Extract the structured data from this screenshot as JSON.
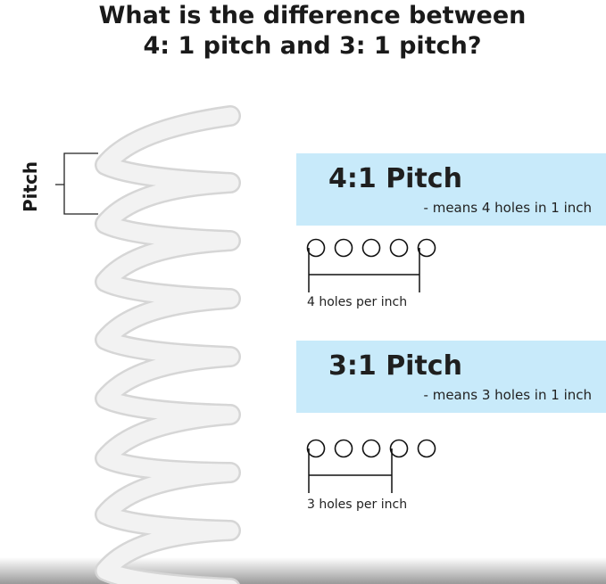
{
  "title": {
    "line1": "What is the difference between",
    "line2": "4: 1 pitch and 3: 1 pitch?"
  },
  "spring": {
    "label": "Pitch",
    "color": "#f2f2f2"
  },
  "pitch_4_1": {
    "heading": "4:1 Pitch",
    "subtitle": "- means 4 holes in 1 inch",
    "caption": "4 holes per inch",
    "holes_shown": 5,
    "holes_spanned": 4
  },
  "pitch_3_1": {
    "heading": "3:1 Pitch",
    "subtitle": "- means 3 holes in 1 inch",
    "caption": "3 holes per inch",
    "holes_shown": 5,
    "holes_spanned": 3
  },
  "colors": {
    "box": "#c8eafa",
    "text": "#1a1a1a"
  }
}
